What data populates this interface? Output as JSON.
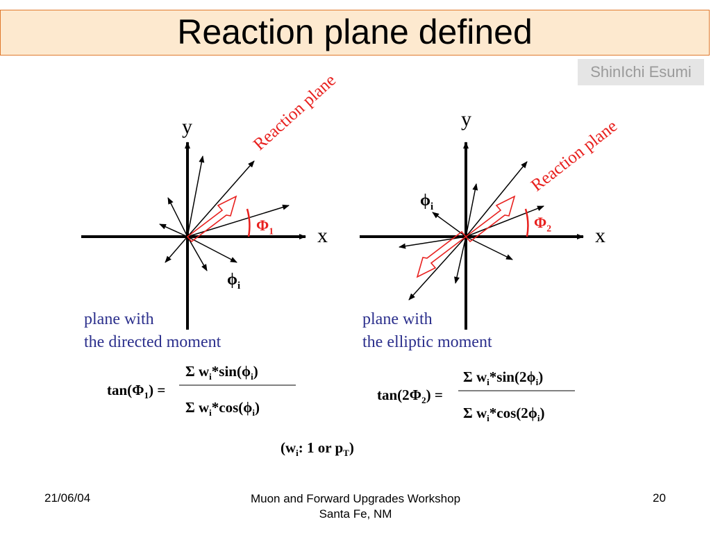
{
  "slide": {
    "title": "Reaction plane defined",
    "author": "ShinIchi Esumi"
  },
  "left_diagram": {
    "y_label": "y",
    "x_label": "x",
    "plane_label": "Reaction plane",
    "angle_symbol": "Φ",
    "angle_sub": "1",
    "phi_symbol": "ϕ",
    "phi_sub": "i",
    "caption_line1": "plane with",
    "caption_line2": "the directed moment"
  },
  "right_diagram": {
    "y_label": "y",
    "x_label": "x",
    "plane_label": "Reaction plane",
    "angle_symbol": "Φ",
    "angle_sub": "2",
    "phi_symbol": "ϕ",
    "phi_sub": "i",
    "caption_line1": "plane with",
    "caption_line2": "the elliptic moment"
  },
  "formula_left": {
    "lhs_a": "tan(Φ",
    "lhs_sub": "1",
    "lhs_b": ") =",
    "num_a": "Σ w",
    "num_sub1": "i",
    "num_b": "*sin(ϕ",
    "num_sub2": "i",
    "num_c": ")",
    "den_a": "Σ w",
    "den_sub1": "i",
    "den_b": "*cos(ϕ",
    "den_sub2": "i",
    "den_c": ")"
  },
  "formula_right": {
    "lhs_a": "tan(2Φ",
    "lhs_sub": "2",
    "lhs_b": ") =",
    "num_a": "Σ w",
    "num_sub1": "i",
    "num_b": "*sin(2ϕ",
    "num_sub2": "i",
    "num_c": ")",
    "den_a": "Σ w",
    "den_sub1": "i",
    "den_b": "*cos(2ϕ",
    "den_sub2": "i",
    "den_c": ")"
  },
  "weight_note": {
    "a": "(w",
    "sub1": "i",
    "b": ": 1 or p",
    "sub2": "T",
    "c": ")"
  },
  "footer": {
    "date": "21/06/04",
    "event_line1": "Muon and Forward Upgrades Workshop",
    "event_line2": "Santa Fe, NM",
    "page": "20"
  },
  "colors": {
    "accent": "#e8201e",
    "caption": "#2b2f8c",
    "title_bg": "#fde9cf",
    "title_border": "#e0782c"
  }
}
